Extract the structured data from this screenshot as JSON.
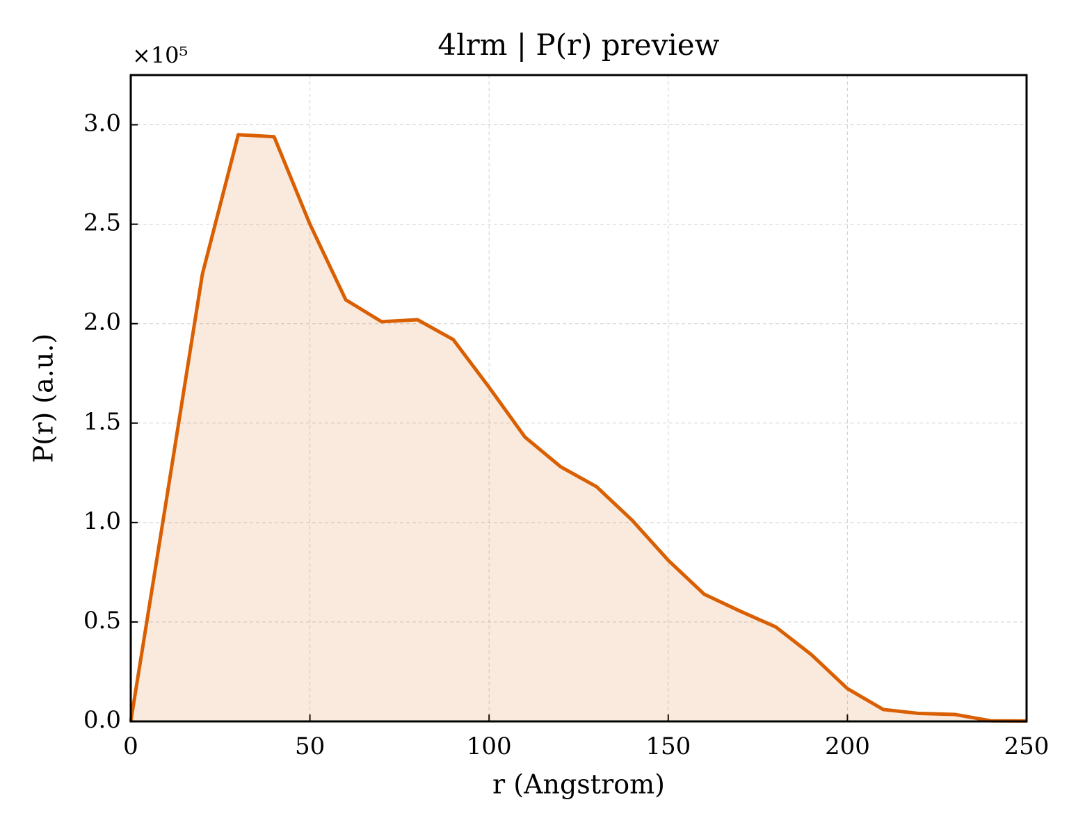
{
  "chart_data": {
    "type": "line",
    "title": "4lrm | P(r) preview",
    "x_label": "r (Angstrom)",
    "y_label": "P(r) (a.u.)",
    "y_offset_label": "×10⁵",
    "x": [
      0,
      10,
      20,
      30,
      40,
      50,
      60,
      70,
      80,
      90,
      100,
      110,
      120,
      130,
      140,
      150,
      160,
      170,
      180,
      190,
      200,
      210,
      220,
      230,
      240,
      250
    ],
    "series": [
      {
        "name": "P(r)",
        "color": "#d95f02",
        "values": [
          0,
          112000,
          225000,
          295000,
          294000,
          250000,
          212000,
          201000,
          202000,
          192000,
          168000,
          143000,
          128000,
          118000,
          101000,
          81000,
          64000,
          55500,
          47500,
          33500,
          16500,
          6000,
          4000,
          3500,
          300,
          200
        ]
      }
    ],
    "fill": true,
    "xlim": [
      0,
      250
    ],
    "xticks": [
      0,
      50,
      100,
      150,
      200,
      250
    ],
    "ylim": [
      0,
      325000
    ],
    "yticks": [
      {
        "value": 0,
        "label": "0.0"
      },
      {
        "value": 50000,
        "label": "0.5"
      },
      {
        "value": 100000,
        "label": "1.0"
      },
      {
        "value": 150000,
        "label": "1.5"
      },
      {
        "value": 200000,
        "label": "2.0"
      },
      {
        "value": 250000,
        "label": "2.5"
      },
      {
        "value": 300000,
        "label": "3.0"
      }
    ],
    "grid": true
  }
}
